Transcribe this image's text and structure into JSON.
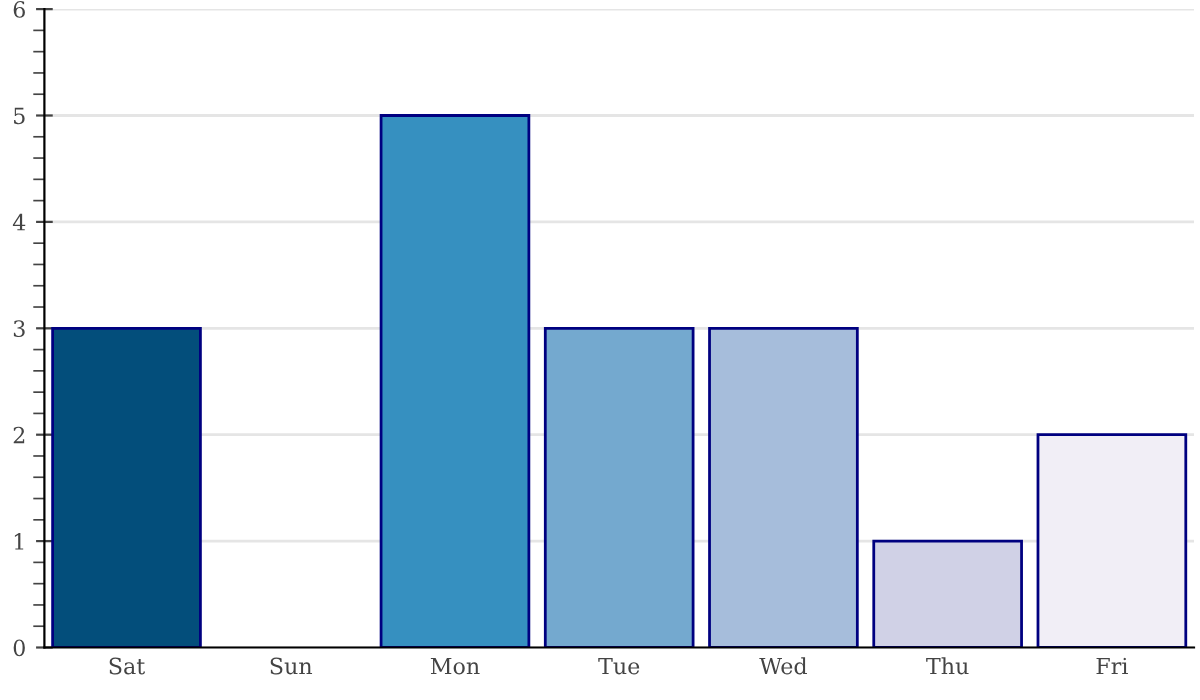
{
  "chart_data": {
    "type": "bar",
    "categories": [
      "Sat",
      "Sun",
      "Mon",
      "Tue",
      "Wed",
      "Thu",
      "Fri"
    ],
    "values": [
      3,
      null,
      5,
      3,
      3,
      1,
      2
    ],
    "colors": [
      "#034e7b",
      null,
      "#3690c0",
      "#74a9cf",
      "#a6bddb",
      "#d0d1e6",
      "#f1eef6"
    ],
    "ylim": [
      0,
      6
    ],
    "yticks": [
      0,
      {
        "value": 0.2,
        "label": null
      },
      {
        "value": 0.4,
        "label": null
      },
      {
        "value": 0.6,
        "label": null
      },
      {
        "value": 0.8,
        "label": null
      },
      1,
      {
        "value": 1.2,
        "label": null
      },
      {
        "value": 1.4,
        "label": null
      },
      {
        "value": 1.6,
        "label": null
      },
      {
        "value": 1.8,
        "label": null
      },
      2,
      {
        "value": 2.2,
        "label": null
      },
      {
        "value": 2.4,
        "label": null
      },
      {
        "value": 2.6,
        "label": null
      },
      {
        "value": 2.8,
        "label": null
      },
      3,
      {
        "value": 3.2,
        "label": null
      },
      {
        "value": 3.4,
        "label": null
      },
      {
        "value": 3.6,
        "label": null
      },
      {
        "value": 3.8,
        "label": null
      },
      4,
      {
        "value": 4.2,
        "label": null
      },
      {
        "value": 4.4,
        "label": null
      },
      {
        "value": 4.6,
        "label": null
      },
      {
        "value": 4.8,
        "label": null
      },
      5,
      {
        "value": 5.2,
        "label": null
      },
      {
        "value": 5.4,
        "label": null
      },
      {
        "value": 5.6,
        "label": null
      },
      {
        "value": 5.8,
        "label": null
      },
      6
    ],
    "grid": "y"
  }
}
